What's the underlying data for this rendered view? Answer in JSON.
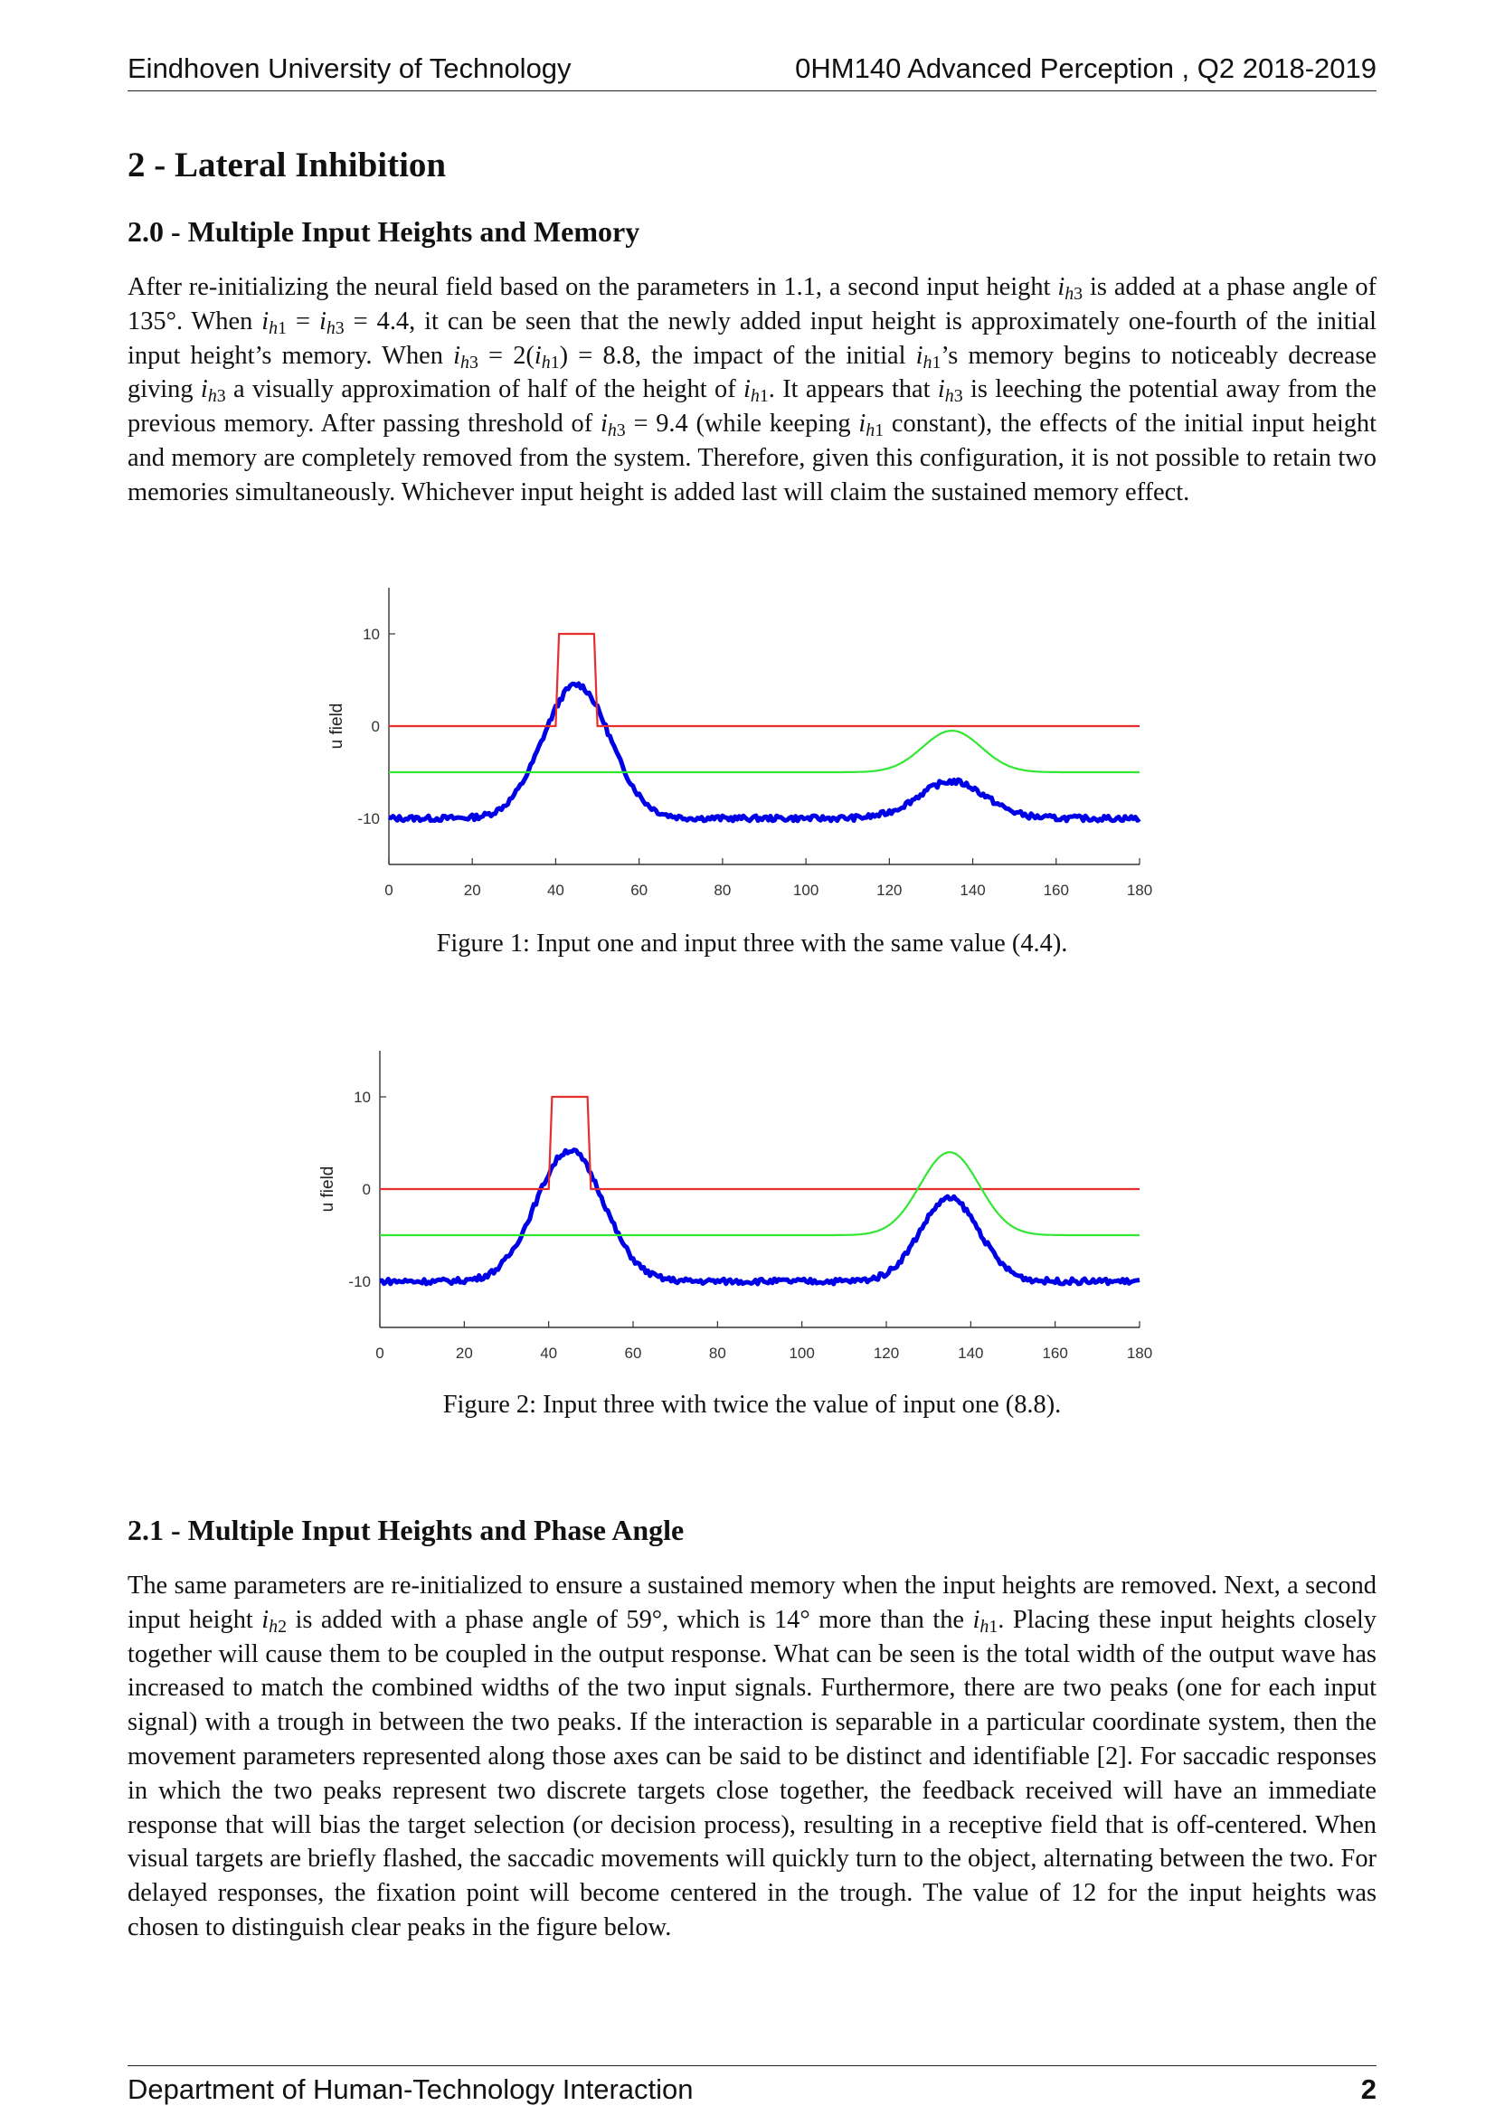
{
  "header": {
    "left": "Eindhoven University of Technology",
    "right": "0HM140 Advanced Perception , Q2 2018-2019"
  },
  "section": {
    "title": "2 - Lateral Inhibition"
  },
  "subsection_1": {
    "title": "2.0 - Multiple Input Heights and Memory",
    "paragraph_html": "After re-initializing the neural field based on the parameters in 1.1, a second input height <i>i</i><sub><i>h</i>3</sub> is added at a phase angle of 135°. When <i>i</i><sub><i>h</i>1</sub> = <i>i</i><sub><i>h</i>3</sub> = 4.4, it can be seen that the newly added input height is approximately one-fourth of the initial input height’s memory. When <i>i</i><sub><i>h</i>3</sub> = 2(<i>i</i><sub><i>h</i>1</sub>) = 8.8, the impact of the initial <i>i</i><sub><i>h</i>1</sub>’s memory begins to noticeably decrease giving <i>i</i><sub><i>h</i>3</sub> a visually approximation of half of the height of <i>i</i><sub><i>h</i>1</sub>. It appears that <i>i</i><sub><i>h</i>3</sub> is leeching the potential away from the previous memory. After passing threshold of <i>i</i><sub><i>h</i>3</sub> = 9.4 (while keeping <i>i</i><sub><i>h</i>1</sub> constant), the effects of the initial input height and memory are completely removed from the system. Therefore, given this configuration, it is not possible to retain two memories simultaneously. Whichever input height is added last will claim the sustained memory effect."
  },
  "figure_1": {
    "caption": "Figure 1: Input one and input three with the same value (4.4)."
  },
  "figure_2": {
    "caption": "Figure 2: Input three with twice the value of input one (8.8)."
  },
  "subsection_2": {
    "title": "2.1 - Multiple Input Heights and Phase Angle",
    "paragraph_html": "The same parameters are re-initialized to ensure a sustained memory when the input heights are removed. Next, a second input height <i>i</i><sub><i>h</i>2</sub> is added with a phase angle of 59°, which is 14° more than the <i>i</i><sub><i>h</i>1</sub>. Placing these input heights closely together will cause them to be coupled in the output response. What can be seen is the total width of the output wave has increased to match the combined widths of the two input signals. Furthermore, there are two peaks (one for each input signal) with a trough in between the two peaks. If the interaction is separable in a particular coordinate system, then the movement parameters represented along those axes can be said to be distinct and identifiable [2]. For saccadic responses in which the two peaks represent two discrete targets close together, the feedback received will have an immediate response that will bias the target selection (or decision process), resulting in a receptive field that is off-centered. When visual targets are briefly flashed, the saccadic movements will quickly turn to the object, alternating between the two. For delayed responses, the fixation point will become centered in the trough. The value of 12 for the input heights was chosen to distinguish clear peaks in the figure below."
  },
  "footer": {
    "left": "Department of Human-Technology Interaction",
    "page": "2"
  },
  "chart_data": [
    {
      "type": "line",
      "ylabel": "u field",
      "xlim": [
        0,
        180
      ],
      "ylim": [
        -15,
        15
      ],
      "xticks": [
        "0",
        "20",
        "40",
        "60",
        "80",
        "100",
        "120",
        "140",
        "160",
        "180"
      ],
      "yticks": [
        "10",
        "0",
        "-10"
      ],
      "colors": {
        "output": "#0000e6",
        "output_field": "#e62e2e",
        "input": "#33e633"
      },
      "series": [
        {
          "role": "output",
          "shape": "output",
          "baseline": -10,
          "peaks": [
            {
              "x": 45,
              "height": 4.5,
              "width": 8
            },
            {
              "x": 135,
              "height": -6,
              "width": 8
            }
          ]
        },
        {
          "role": "output_field",
          "shape": "threshold_plateau",
          "baseline": 0,
          "plateau": 10,
          "x_from": 40,
          "x_to": 50
        },
        {
          "role": "input",
          "shape": "gaussian",
          "baseline": -5,
          "center": 135,
          "peak": -0.5,
          "width": 7
        }
      ]
    },
    {
      "type": "line",
      "ylabel": "u field",
      "xlim": [
        0,
        180
      ],
      "ylim": [
        -15,
        15
      ],
      "xticks": [
        "0",
        "20",
        "40",
        "60",
        "80",
        "100",
        "120",
        "140",
        "160",
        "180"
      ],
      "yticks": [
        "10",
        "0",
        "-10"
      ],
      "colors": {
        "output": "#0000e6",
        "output_field": "#e62e2e",
        "input": "#33e633"
      },
      "series": [
        {
          "role": "output",
          "shape": "output",
          "baseline": -10,
          "peaks": [
            {
              "x": 45,
              "height": 4.2,
              "width": 8
            },
            {
              "x": 135,
              "height": -1,
              "width": 7
            }
          ]
        },
        {
          "role": "output_field",
          "shape": "threshold_plateau",
          "baseline": 0,
          "plateau": 10,
          "x_from": 40,
          "x_to": 50
        },
        {
          "role": "input",
          "shape": "gaussian",
          "baseline": -5,
          "center": 135,
          "peak": 4,
          "width": 7
        }
      ]
    }
  ]
}
